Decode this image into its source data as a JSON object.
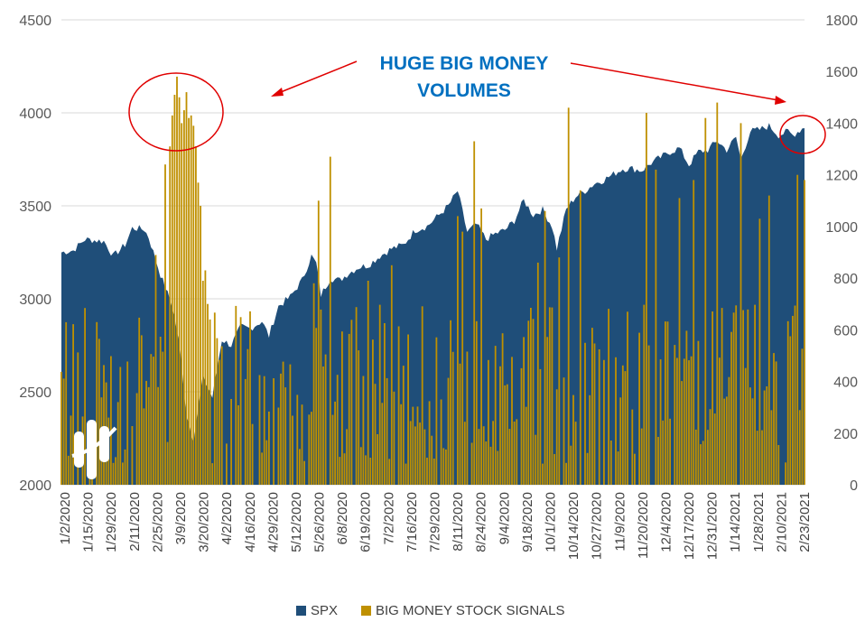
{
  "chart_data": {
    "type": "area",
    "title": "",
    "annotation": {
      "line1": "HUGE BIG MONEY",
      "line2": "VOLUMES"
    },
    "left_axis": {
      "ticks": [
        2000,
        2500,
        3000,
        3500,
        4000,
        4500
      ],
      "range": [
        2000,
        4500
      ]
    },
    "right_axis": {
      "ticks": [
        0,
        200,
        400,
        600,
        800,
        1000,
        1200,
        1400,
        1600,
        1800
      ],
      "range": [
        0,
        1800
      ]
    },
    "x_labels": [
      "1/2/2020",
      "1/15/2020",
      "1/29/2020",
      "2/11/2020",
      "2/25/2020",
      "3/9/2020",
      "3/20/2020",
      "4/2/2020",
      "4/16/2020",
      "4/29/2020",
      "5/12/2020",
      "5/26/2020",
      "6/8/2020",
      "6/19/2020",
      "7/2/2020",
      "7/16/2020",
      "7/29/2020",
      "8/11/2020",
      "8/24/2020",
      "9/4/2020",
      "9/18/2020",
      "10/1/2020",
      "10/14/2020",
      "10/27/2020",
      "11/9/2020",
      "11/20/2020",
      "12/4/2020",
      "12/17/2020",
      "12/31/2020",
      "1/14/2021",
      "1/28/2021",
      "2/10/2021",
      "2/23/2021"
    ],
    "spx_keypoints": [
      [
        0,
        3250
      ],
      [
        5,
        3260
      ],
      [
        10,
        3320
      ],
      [
        18,
        3310
      ],
      [
        22,
        3230
      ],
      [
        27,
        3290
      ],
      [
        30,
        3380
      ],
      [
        35,
        3375
      ],
      [
        37,
        3330
      ],
      [
        42,
        3130
      ],
      [
        47,
        2960
      ],
      [
        50,
        2760
      ],
      [
        53,
        2380
      ],
      [
        56,
        2240
      ],
      [
        60,
        2580
      ],
      [
        64,
        2470
      ],
      [
        68,
        2780
      ],
      [
        72,
        2750
      ],
      [
        76,
        2850
      ],
      [
        80,
        2840
      ],
      [
        85,
        2880
      ],
      [
        88,
        2800
      ],
      [
        92,
        2960
      ],
      [
        97,
        3010
      ],
      [
        102,
        3100
      ],
      [
        106,
        3230
      ],
      [
        108,
        3190
      ],
      [
        110,
        3020
      ],
      [
        114,
        3110
      ],
      [
        118,
        3100
      ],
      [
        122,
        3140
      ],
      [
        126,
        3170
      ],
      [
        130,
        3180
      ],
      [
        135,
        3230
      ],
      [
        140,
        3270
      ],
      [
        145,
        3290
      ],
      [
        150,
        3370
      ],
      [
        155,
        3390
      ],
      [
        160,
        3450
      ],
      [
        164,
        3500
      ],
      [
        168,
        3580
      ],
      [
        172,
        3360
      ],
      [
        176,
        3400
      ],
      [
        180,
        3320
      ],
      [
        184,
        3350
      ],
      [
        188,
        3370
      ],
      [
        192,
        3420
      ],
      [
        196,
        3530
      ],
      [
        200,
        3450
      ],
      [
        204,
        3480
      ],
      [
        208,
        3390
      ],
      [
        210,
        3270
      ],
      [
        214,
        3480
      ],
      [
        218,
        3550
      ],
      [
        222,
        3580
      ],
      [
        226,
        3620
      ],
      [
        230,
        3640
      ],
      [
        234,
        3670
      ],
      [
        238,
        3700
      ],
      [
        242,
        3700
      ],
      [
        246,
        3690
      ],
      [
        250,
        3730
      ],
      [
        254,
        3760
      ],
      [
        258,
        3790
      ],
      [
        262,
        3810
      ],
      [
        266,
        3720
      ],
      [
        270,
        3790
      ],
      [
        274,
        3800
      ],
      [
        278,
        3850
      ],
      [
        282,
        3800
      ],
      [
        286,
        3870
      ],
      [
        288,
        3750
      ],
      [
        292,
        3900
      ],
      [
        296,
        3910
      ],
      [
        300,
        3930
      ],
      [
        304,
        3880
      ],
      [
        308,
        3900
      ],
      [
        310,
        3880
      ],
      [
        315,
        3925
      ]
    ],
    "signals_note": "Dense daily bars (0-1800 scale); peaks ~1580 around early March 2020 and ~1450-1480 around Nov 2020, Dec 2020 and Jan 2021",
    "signal_peaks": [
      [
        40,
        890
      ],
      [
        44,
        1240
      ],
      [
        46,
        1310
      ],
      [
        47,
        1430
      ],
      [
        48,
        1510
      ],
      [
        49,
        1580
      ],
      [
        50,
        1500
      ],
      [
        51,
        1400
      ],
      [
        52,
        1450
      ],
      [
        53,
        1520
      ],
      [
        54,
        1420
      ],
      [
        55,
        1430
      ],
      [
        56,
        1390
      ],
      [
        57,
        1310
      ],
      [
        58,
        1170
      ],
      [
        59,
        1080
      ],
      [
        60,
        790
      ],
      [
        61,
        830
      ],
      [
        62,
        700
      ],
      [
        63,
        640
      ],
      [
        107,
        780
      ],
      [
        109,
        1100
      ],
      [
        114,
        1270
      ],
      [
        130,
        790
      ],
      [
        140,
        850
      ],
      [
        168,
        1040
      ],
      [
        170,
        980
      ],
      [
        175,
        1330
      ],
      [
        178,
        1070
      ],
      [
        202,
        860
      ],
      [
        205,
        1060
      ],
      [
        211,
        880
      ],
      [
        215,
        1460
      ],
      [
        220,
        1140
      ],
      [
        248,
        1440
      ],
      [
        252,
        1220
      ],
      [
        262,
        1110
      ],
      [
        268,
        1180
      ],
      [
        273,
        1420
      ],
      [
        278,
        1480
      ],
      [
        288,
        1400
      ],
      [
        296,
        1030
      ],
      [
        300,
        1120
      ],
      [
        312,
        1200
      ],
      [
        315,
        1180
      ]
    ],
    "legend": [
      {
        "label": "SPX",
        "color": "#1f4e79"
      },
      {
        "label": "BIG MONEY STOCK SIGNALS",
        "color": "#bf9000"
      }
    ],
    "colors": {
      "spx_fill": "#1f4e79",
      "signals": "#bf9000",
      "annotation_text": "#0070c0",
      "annotation_marks": "#e00000"
    }
  }
}
